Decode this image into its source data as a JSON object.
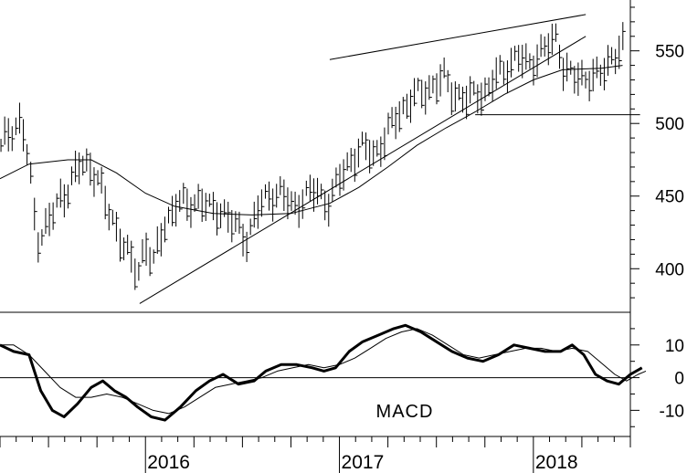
{
  "chart_data": [
    {
      "type": "line",
      "panel": "price",
      "chart_style": "weekly high-low bars with moving average and trendlines",
      "ylim": [
        370,
        585
      ],
      "yticks": [
        400,
        450,
        500,
        550
      ],
      "x_axis": {
        "range": [
          2015.25,
          2018.5
        ],
        "tick_labels": [
          "2016",
          "2017",
          "2018"
        ],
        "tick_label_positions": [
          2016.0,
          2017.0,
          2018.0
        ]
      },
      "bars_anchor": [
        [
          2015.25,
          480
        ],
        [
          2015.3,
          495
        ],
        [
          2015.36,
          500
        ],
        [
          2015.4,
          470
        ],
        [
          2015.44,
          420
        ],
        [
          2015.5,
          430
        ],
        [
          2015.55,
          445
        ],
        [
          2015.6,
          455
        ],
        [
          2015.66,
          470
        ],
        [
          2015.72,
          470
        ],
        [
          2015.76,
          460
        ],
        [
          2015.8,
          440
        ],
        [
          2015.86,
          425
        ],
        [
          2015.92,
          405
        ],
        [
          2015.96,
          395
        ],
        [
          2016.0,
          418
        ],
        [
          2016.04,
          402
        ],
        [
          2016.1,
          430
        ],
        [
          2016.16,
          445
        ],
        [
          2016.22,
          442
        ],
        [
          2016.28,
          448
        ],
        [
          2016.34,
          438
        ],
        [
          2016.4,
          440
        ],
        [
          2016.46,
          428
        ],
        [
          2016.52,
          420
        ],
        [
          2016.58,
          440
        ],
        [
          2016.64,
          450
        ],
        [
          2016.7,
          452
        ],
        [
          2016.76,
          440
        ],
        [
          2016.82,
          450
        ],
        [
          2016.88,
          452
        ],
        [
          2016.94,
          445
        ],
        [
          2017.0,
          460
        ],
        [
          2017.06,
          475
        ],
        [
          2017.12,
          482
        ],
        [
          2017.18,
          478
        ],
        [
          2017.24,
          490
        ],
        [
          2017.3,
          505
        ],
        [
          2017.36,
          515
        ],
        [
          2017.42,
          520
        ],
        [
          2017.48,
          525
        ],
        [
          2017.54,
          530
        ],
        [
          2017.58,
          522
        ],
        [
          2017.62,
          518
        ],
        [
          2017.66,
          515
        ],
        [
          2017.72,
          522
        ],
        [
          2017.76,
          520
        ],
        [
          2017.8,
          530
        ],
        [
          2017.86,
          538
        ],
        [
          2017.92,
          545
        ],
        [
          2017.96,
          540
        ],
        [
          2018.0,
          543
        ],
        [
          2018.06,
          550
        ],
        [
          2018.1,
          555
        ],
        [
          2018.12,
          560
        ],
        [
          2018.16,
          535
        ],
        [
          2018.22,
          530
        ],
        [
          2018.28,
          532
        ],
        [
          2018.34,
          530
        ],
        [
          2018.4,
          545
        ],
        [
          2018.46,
          552
        ]
      ],
      "moving_average": [
        [
          2015.25,
          462
        ],
        [
          2015.4,
          472
        ],
        [
          2015.6,
          475
        ],
        [
          2015.72,
          475
        ],
        [
          2015.85,
          466
        ],
        [
          2016.0,
          452
        ],
        [
          2016.15,
          443
        ],
        [
          2016.35,
          438
        ],
        [
          2016.55,
          437
        ],
        [
          2016.75,
          438
        ],
        [
          2016.95,
          445
        ],
        [
          2017.1,
          456
        ],
        [
          2017.25,
          470
        ],
        [
          2017.4,
          485
        ],
        [
          2017.55,
          497
        ],
        [
          2017.7,
          508
        ],
        [
          2017.85,
          520
        ],
        [
          2018.0,
          530
        ],
        [
          2018.15,
          537
        ],
        [
          2018.35,
          538
        ],
        [
          2018.46,
          540
        ]
      ],
      "trendlines": [
        {
          "from": [
            2015.97,
            376
          ],
          "to": [
            2018.27,
            560
          ]
        },
        {
          "from": [
            2016.95,
            544
          ],
          "to": [
            2018.27,
            575
          ]
        },
        {
          "from": [
            2017.7,
            506
          ],
          "to": [
            2018.55,
            506
          ]
        }
      ]
    },
    {
      "type": "line",
      "panel": "indicator",
      "indicator_label": "MACD",
      "ylim": [
        -18,
        20
      ],
      "yticks": [
        10,
        0,
        -10
      ],
      "ytick_labels": [
        "10",
        "0",
        "-10"
      ],
      "zero_line": 0,
      "series": [
        {
          "style": "thick",
          "values": [
            [
              2015.25,
              10
            ],
            [
              2015.32,
              8
            ],
            [
              2015.4,
              7
            ],
            [
              2015.46,
              -4
            ],
            [
              2015.52,
              -10
            ],
            [
              2015.58,
              -12
            ],
            [
              2015.65,
              -8
            ],
            [
              2015.72,
              -3
            ],
            [
              2015.78,
              -1
            ],
            [
              2015.84,
              -4
            ],
            [
              2015.9,
              -6
            ],
            [
              2015.96,
              -9
            ],
            [
              2016.03,
              -12
            ],
            [
              2016.1,
              -13
            ],
            [
              2016.18,
              -9
            ],
            [
              2016.26,
              -4
            ],
            [
              2016.33,
              -1
            ],
            [
              2016.4,
              1
            ],
            [
              2016.48,
              -2
            ],
            [
              2016.56,
              -1
            ],
            [
              2016.62,
              2
            ],
            [
              2016.7,
              4
            ],
            [
              2016.78,
              4
            ],
            [
              2016.86,
              3
            ],
            [
              2016.92,
              2
            ],
            [
              2016.98,
              3
            ],
            [
              2017.05,
              8
            ],
            [
              2017.12,
              11
            ],
            [
              2017.2,
              13
            ],
            [
              2017.28,
              15
            ],
            [
              2017.34,
              16
            ],
            [
              2017.42,
              14
            ],
            [
              2017.5,
              11
            ],
            [
              2017.58,
              8
            ],
            [
              2017.66,
              6
            ],
            [
              2017.74,
              5
            ],
            [
              2017.82,
              7
            ],
            [
              2017.9,
              10
            ],
            [
              2017.98,
              9
            ],
            [
              2018.06,
              8
            ],
            [
              2018.14,
              8
            ],
            [
              2018.2,
              10
            ],
            [
              2018.26,
              7
            ],
            [
              2018.32,
              1
            ],
            [
              2018.38,
              -1
            ],
            [
              2018.44,
              -2
            ],
            [
              2018.5,
              1
            ],
            [
              2018.56,
              3
            ]
          ]
        },
        {
          "style": "thin",
          "values": [
            [
              2015.25,
              10
            ],
            [
              2015.32,
              10
            ],
            [
              2015.4,
              7
            ],
            [
              2015.48,
              2
            ],
            [
              2015.56,
              -3
            ],
            [
              2015.64,
              -6
            ],
            [
              2015.72,
              -6
            ],
            [
              2015.8,
              -5
            ],
            [
              2015.88,
              -6
            ],
            [
              2015.96,
              -8
            ],
            [
              2016.04,
              -10
            ],
            [
              2016.12,
              -11
            ],
            [
              2016.2,
              -9
            ],
            [
              2016.28,
              -6
            ],
            [
              2016.36,
              -3
            ],
            [
              2016.44,
              -2
            ],
            [
              2016.52,
              -1
            ],
            [
              2016.6,
              0
            ],
            [
              2016.68,
              2
            ],
            [
              2016.76,
              3
            ],
            [
              2016.84,
              4
            ],
            [
              2016.92,
              3
            ],
            [
              2017.0,
              4
            ],
            [
              2017.08,
              6
            ],
            [
              2017.16,
              9
            ],
            [
              2017.24,
              12
            ],
            [
              2017.32,
              14
            ],
            [
              2017.4,
              15
            ],
            [
              2017.48,
              13
            ],
            [
              2017.56,
              10
            ],
            [
              2017.64,
              7
            ],
            [
              2017.72,
              6
            ],
            [
              2017.8,
              7
            ],
            [
              2017.88,
              8
            ],
            [
              2017.96,
              9
            ],
            [
              2018.04,
              9
            ],
            [
              2018.12,
              8
            ],
            [
              2018.2,
              9
            ],
            [
              2018.28,
              8
            ],
            [
              2018.36,
              4
            ],
            [
              2018.42,
              1
            ],
            [
              2018.48,
              -1
            ],
            [
              2018.54,
              1
            ],
            [
              2018.58,
              2
            ]
          ]
        }
      ]
    }
  ]
}
